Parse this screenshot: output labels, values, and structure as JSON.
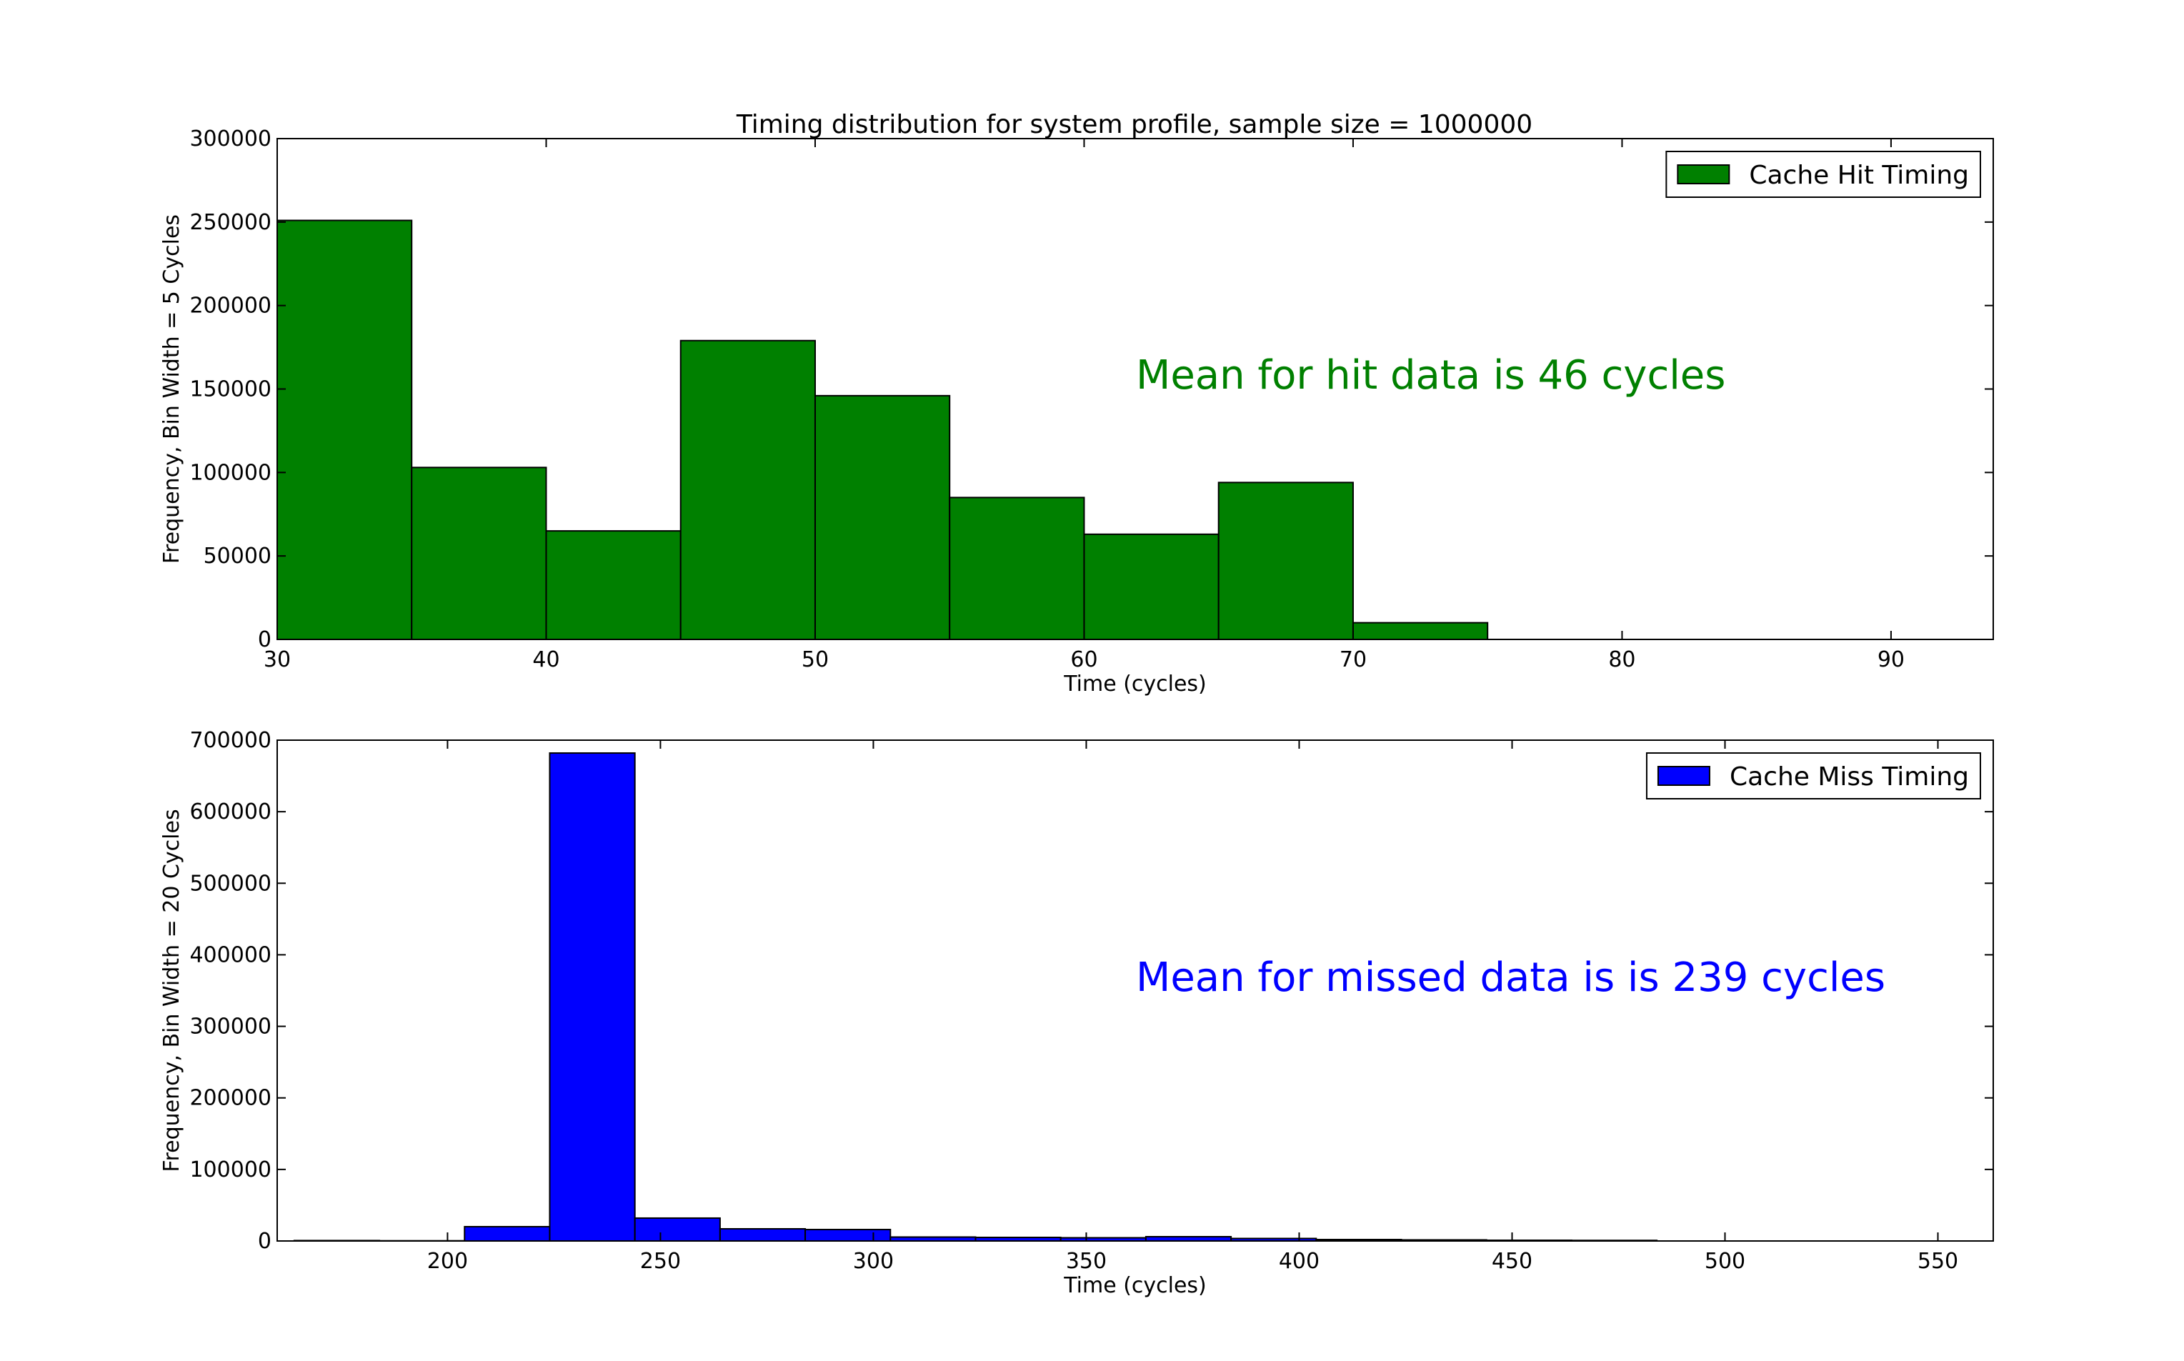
{
  "figure": {
    "title": "Timing distribution for system profile, sample size = 1000000"
  },
  "chart_data": [
    {
      "type": "bar",
      "subtype": "histogram",
      "title": "Timing distribution for system profile, sample size = 1000000",
      "xlabel": "Time (cycles)",
      "ylabel": "Frequency, Bin Width = 5 Cycles",
      "xlim": [
        30,
        93.8
      ],
      "ylim": [
        0,
        300000
      ],
      "xticks": [
        30,
        40,
        50,
        60,
        70,
        80,
        90
      ],
      "yticks": [
        0,
        50000,
        100000,
        150000,
        200000,
        250000,
        300000
      ],
      "bin_width": 5,
      "bins": [
        30,
        35,
        40,
        45,
        50,
        55,
        60,
        65,
        70
      ],
      "values": [
        251000,
        103000,
        65000,
        179000,
        146000,
        85000,
        63000,
        94000,
        10000
      ],
      "color": "#008000",
      "legend": {
        "label": "Cache Hit Timing",
        "position": "top-right"
      },
      "annotation": {
        "text": "Mean for hit data is 46 cycles",
        "color": "#008000"
      }
    },
    {
      "type": "bar",
      "subtype": "histogram",
      "title": "",
      "xlabel": "Time (cycles)",
      "ylabel": "Frequency, Bin Width = 20 Cycles",
      "xlim": [
        160,
        563
      ],
      "ylim": [
        0,
        700000
      ],
      "xticks": [
        200,
        250,
        300,
        350,
        400,
        450,
        500,
        550
      ],
      "yticks": [
        0,
        100000,
        200000,
        300000,
        400000,
        500000,
        600000,
        700000
      ],
      "bin_width": 20,
      "bins": [
        164,
        184,
        204,
        224,
        244,
        264,
        284,
        304,
        324,
        344,
        364,
        384,
        404,
        424,
        444,
        464
      ],
      "values": [
        600,
        300,
        20000,
        682000,
        32000,
        17000,
        16000,
        5500,
        5000,
        4500,
        6000,
        3500,
        2000,
        1500,
        1000,
        800
      ],
      "color": "#0000ff",
      "legend": {
        "label": "Cache Miss Timing",
        "position": "top-right"
      },
      "annotation": {
        "text": "Mean for missed data is is 239 cycles",
        "color": "#0000ff"
      }
    }
  ]
}
